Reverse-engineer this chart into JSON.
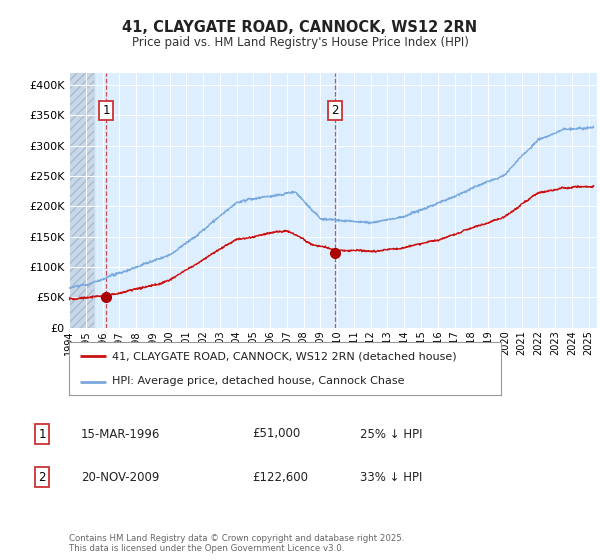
{
  "title_line1": "41, CLAYGATE ROAD, CANNOCK, WS12 2RN",
  "title_line2": "Price paid vs. HM Land Registry's House Price Index (HPI)",
  "ytick_values": [
    0,
    50000,
    100000,
    150000,
    200000,
    250000,
    300000,
    350000,
    400000
  ],
  "ylim": [
    0,
    420000
  ],
  "xlim_start": 1994.0,
  "xlim_end": 2025.5,
  "fig_bg_color": "#ffffff",
  "plot_bg_color": "#ddeeff",
  "hatch_bg_color": "#c8d8ea",
  "grid_color": "#ffffff",
  "hpi_color": "#7aaadd",
  "price_color": "#cc1111",
  "marker_color": "#aa0000",
  "sale1_date": 1996.21,
  "sale1_price": 51000,
  "sale2_date": 2009.88,
  "sale2_price": 122600,
  "legend_label_price": "41, CLAYGATE ROAD, CANNOCK, WS12 2RN (detached house)",
  "legend_label_hpi": "HPI: Average price, detached house, Cannock Chase",
  "annotation1_date": "15-MAR-1996",
  "annotation1_price": "£51,000",
  "annotation1_hpi": "25% ↓ HPI",
  "annotation2_date": "20-NOV-2009",
  "annotation2_price": "£122,600",
  "annotation2_hpi": "33% ↓ HPI",
  "footer": "Contains HM Land Registry data © Crown copyright and database right 2025.\nThis data is licensed under the Open Government Licence v3.0.",
  "xtick_years": [
    1994,
    1995,
    1996,
    1997,
    1998,
    1999,
    2000,
    2001,
    2002,
    2003,
    2004,
    2005,
    2006,
    2007,
    2008,
    2009,
    2010,
    2011,
    2012,
    2013,
    2014,
    2015,
    2016,
    2017,
    2018,
    2019,
    2020,
    2021,
    2022,
    2023,
    2024,
    2025
  ]
}
